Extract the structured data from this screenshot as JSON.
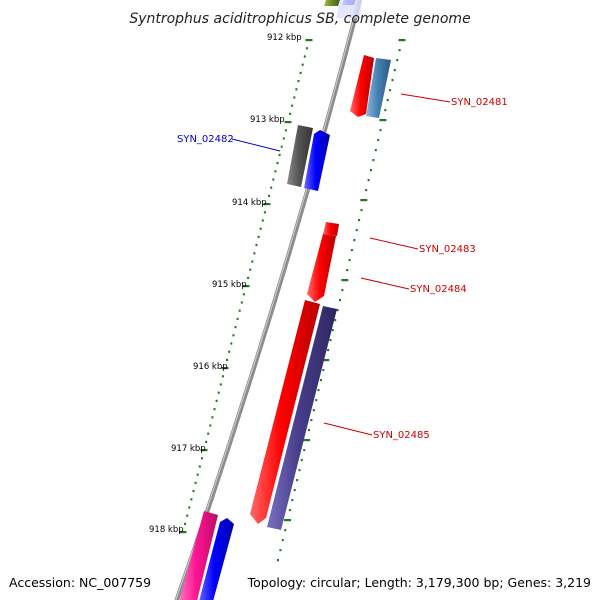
{
  "title": "Syntrophus aciditrophicus SB, complete genome",
  "footer": {
    "accession": "Accession: NC_007759",
    "summary": "Topology: circular; Length: 3,179,300 bp; Genes: 3,219"
  },
  "ticks": [
    "912 kbp",
    "913 kbp",
    "914 kbp",
    "915 kbp",
    "916 kbp",
    "917 kbp",
    "918 kbp"
  ],
  "genes": [
    {
      "id": "SYN_02481",
      "color": "#cc0000",
      "strand": "+"
    },
    {
      "id": "SYN_02482",
      "color": "#0000cc",
      "strand": "-"
    },
    {
      "id": "SYN_02483",
      "color": "#cc0000",
      "strand": "+"
    },
    {
      "id": "SYN_02484",
      "color": "#cc0000",
      "strand": "+"
    },
    {
      "id": "SYN_02485",
      "color": "#cc0000",
      "strand": "+"
    }
  ],
  "colors": {
    "backbone": "#8c8c8c",
    "tick": "#1f7a1f",
    "red_gene": "#ff0000",
    "blue_gene": "#0000ff",
    "steelblue_gene": "#4682b4",
    "gray_gene": "#555555",
    "slateblue_gene": "#483d8b",
    "pink_gene": "#ff1493",
    "olive_gene": "#6b8e23"
  }
}
